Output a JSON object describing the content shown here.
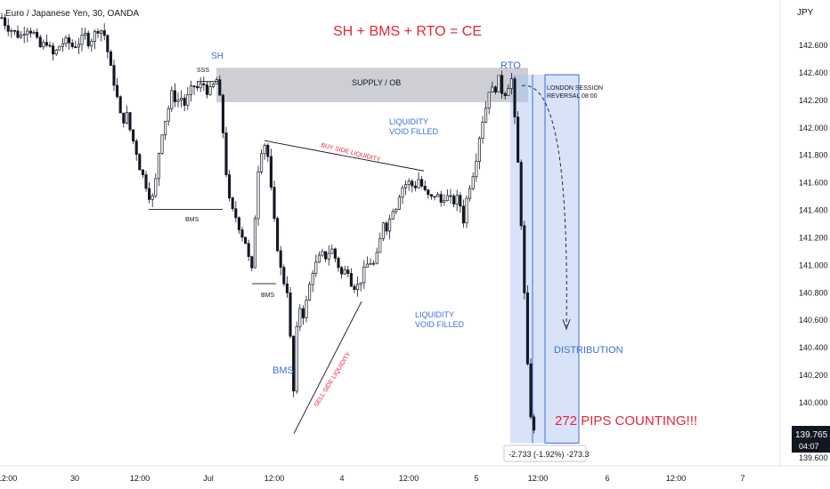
{
  "header": {
    "symbol_title": "Euro / Japanese Yen, 30, OANDA"
  },
  "formula": "SH + BMS + RTO = CE",
  "currency_label": "JPY",
  "price_axis": {
    "ticks": [
      "142.600",
      "142.400",
      "142.200",
      "142.000",
      "141.800",
      "141.600",
      "141.400",
      "141.200",
      "141.000",
      "140.800",
      "140.600",
      "140.400",
      "140.200",
      "140.000",
      "139.800",
      "139.600"
    ],
    "last_price": "139.765",
    "countdown": "04:07"
  },
  "time_axis": {
    "ticks": [
      "12:00",
      "30",
      "12:00",
      "Jul",
      "12:00",
      "4",
      "12:00",
      "5",
      "12:00",
      "6",
      "12:00",
      "7"
    ]
  },
  "annotations": {
    "sh": "SH",
    "sss": "SSS",
    "supply": "SUPPLY / OB",
    "rto": "RTO",
    "london_1": "LONDON SESSION",
    "london_2": "REVERSAL 08:00",
    "bms1": "BMS",
    "bms2": "BMS",
    "bms3": "BMS",
    "buy_side": "BUY SIDE LIQUIDITY",
    "sell_side": "SELL SIDE LIQUIDITY",
    "lv1_1": "LIQUIDITY",
    "lv1_2": "VOID FILLED",
    "lv2_1": "LIQUIDITY",
    "lv2_2": "VOID FILLED",
    "distribution": "DISTRIBUTION",
    "pips": "272 PIPS COUNTING!!!",
    "measure": "-2.733 (-1.92%) -273.3"
  },
  "colors": {
    "candle": "#131722",
    "supply_zone": "#c8cad0",
    "measure_zone": "#a9c1f5",
    "blue_text": "#3d6fd6",
    "red_text": "#e0263a",
    "price_tag": "#131722"
  },
  "chart_data": {
    "type": "candlestick",
    "title": "Euro / Japanese Yen, 30, OANDA",
    "ylabel": "JPY",
    "ylim": [
      139.58,
      142.78
    ],
    "path": [
      [
        0,
        142.82
      ],
      [
        8,
        142.72
      ],
      [
        15,
        142.7
      ],
      [
        22,
        142.65
      ],
      [
        30,
        142.72
      ],
      [
        38,
        142.68
      ],
      [
        45,
        142.58
      ],
      [
        52,
        142.62
      ],
      [
        60,
        142.52
      ],
      [
        68,
        142.6
      ],
      [
        75,
        142.63
      ],
      [
        82,
        142.58
      ],
      [
        90,
        142.62
      ],
      [
        95,
        142.68
      ],
      [
        100,
        142.6
      ],
      [
        106,
        142.68
      ],
      [
        112,
        142.72
      ],
      [
        118,
        142.66
      ],
      [
        122,
        142.5
      ],
      [
        127,
        142.35
      ],
      [
        132,
        142.2
      ],
      [
        137,
        142.02
      ],
      [
        142,
        142.1
      ],
      [
        147,
        141.95
      ],
      [
        152,
        141.85
      ],
      [
        157,
        141.7
      ],
      [
        162,
        141.62
      ],
      [
        167,
        141.5
      ],
      [
        171,
        141.48
      ],
      [
        175,
        141.62
      ],
      [
        179,
        141.85
      ],
      [
        183,
        142.0
      ],
      [
        188,
        142.1
      ],
      [
        193,
        142.25
      ],
      [
        198,
        142.18
      ],
      [
        203,
        142.22
      ],
      [
        208,
        142.15
      ],
      [
        212,
        142.25
      ],
      [
        217,
        142.3
      ],
      [
        222,
        142.28
      ],
      [
        228,
        142.32
      ],
      [
        233,
        142.25
      ],
      [
        238,
        142.28
      ],
      [
        243,
        142.35
      ],
      [
        247,
        142.2
      ],
      [
        251,
        141.92
      ],
      [
        255,
        141.58
      ],
      [
        259,
        141.4
      ],
      [
        263,
        141.38
      ],
      [
        267,
        141.3
      ],
      [
        271,
        141.22
      ],
      [
        275,
        141.18
      ],
      [
        279,
        141.05
      ],
      [
        283,
        140.95
      ],
      [
        286,
        141.3
      ],
      [
        289,
        141.65
      ],
      [
        293,
        141.82
      ],
      [
        297,
        141.88
      ],
      [
        301,
        141.78
      ],
      [
        305,
        141.5
      ],
      [
        309,
        141.25
      ],
      [
        313,
        141.05
      ],
      [
        317,
        140.9
      ],
      [
        320,
        140.85
      ],
      [
        323,
        140.8
      ],
      [
        327,
        140.35
      ],
      [
        329,
        139.98
      ],
      [
        332,
        140.45
      ],
      [
        336,
        140.7
      ],
      [
        341,
        140.62
      ],
      [
        346,
        140.8
      ],
      [
        351,
        140.95
      ],
      [
        356,
        141.02
      ],
      [
        361,
        141.08
      ],
      [
        366,
        141.05
      ],
      [
        372,
        141.12
      ],
      [
        378,
        141.02
      ],
      [
        384,
        140.92
      ],
      [
        390,
        140.98
      ],
      [
        395,
        140.85
      ],
      [
        400,
        140.83
      ],
      [
        405,
        140.88
      ],
      [
        410,
        140.98
      ],
      [
        415,
        141.02
      ],
      [
        420,
        141.0
      ],
      [
        425,
        141.1
      ],
      [
        430,
        141.32
      ],
      [
        435,
        141.25
      ],
      [
        440,
        141.4
      ],
      [
        445,
        141.42
      ],
      [
        450,
        141.55
      ],
      [
        455,
        141.58
      ],
      [
        460,
        141.6
      ],
      [
        465,
        141.55
      ],
      [
        470,
        141.62
      ],
      [
        475,
        141.55
      ],
      [
        480,
        141.5
      ],
      [
        485,
        141.48
      ],
      [
        490,
        141.52
      ],
      [
        495,
        141.45
      ],
      [
        500,
        141.5
      ],
      [
        505,
        141.48
      ],
      [
        510,
        141.45
      ],
      [
        515,
        141.5
      ],
      [
        520,
        141.3
      ],
      [
        525,
        141.52
      ],
      [
        530,
        141.62
      ],
      [
        535,
        141.78
      ],
      [
        540,
        142.0
      ],
      [
        545,
        142.12
      ],
      [
        550,
        142.3
      ],
      [
        555,
        142.25
      ],
      [
        560,
        142.35
      ],
      [
        565,
        142.22
      ],
      [
        570,
        142.28
      ],
      [
        574,
        142.38
      ],
      [
        578,
        142.05
      ],
      [
        582,
        141.7
      ],
      [
        586,
        141.2
      ],
      [
        589,
        140.75
      ],
      [
        592,
        140.3
      ],
      [
        595,
        139.95
      ],
      [
        598,
        139.82
      ],
      [
        600,
        139.77
      ]
    ],
    "annotations": [
      "SH",
      "SSS",
      "SUPPLY / OB",
      "RTO",
      "LONDON SESSION",
      "REVERSAL 08:00",
      "BMS",
      "BUY SIDE LIQUIDITY",
      "SELL SIDE LIQUIDITY",
      "LIQUIDITY",
      "VOID FILLED",
      "DISTRIBUTION",
      "272 PIPS COUNTING!!!",
      "-2.733 (-1.92%) -273.3"
    ]
  }
}
